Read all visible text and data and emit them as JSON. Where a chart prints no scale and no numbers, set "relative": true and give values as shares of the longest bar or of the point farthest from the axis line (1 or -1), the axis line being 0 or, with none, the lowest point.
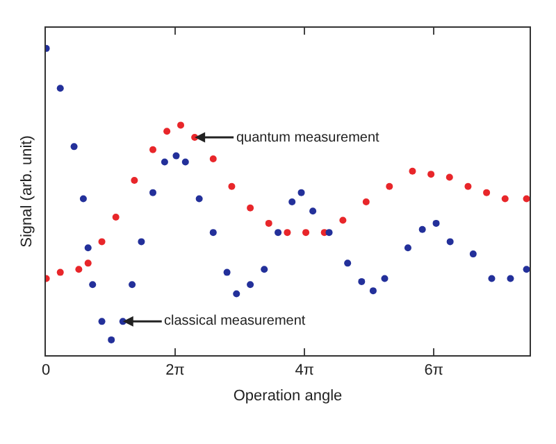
{
  "chart_data": {
    "type": "scatter",
    "relative": true,
    "xlabel": "Operation angle",
    "ylabel": "Signal (arb. unit)",
    "marker": "circle",
    "grid": false,
    "xlim": [
      0,
      23.5
    ],
    "xticks": [
      0,
      {
        "value": 6.283,
        "label": "2π"
      },
      {
        "value": 12.566,
        "label": "4π"
      },
      {
        "value": 18.85,
        "label": "6π"
      }
    ],
    "series": [
      {
        "color": "#e8262a",
        "x": [
          0.02,
          0.7,
          1.6,
          2.05,
          2.72,
          3.4,
          4.3,
          5.2,
          5.88,
          6.55,
          7.23,
          8.13,
          9.03,
          9.93,
          10.83,
          11.73,
          12.63,
          13.53,
          14.43,
          15.56,
          16.69,
          17.81,
          18.71,
          19.61,
          20.51,
          21.41,
          22.31,
          23.35
        ],
        "values": [
          0.25,
          0.27,
          0.28,
          0.3,
          0.37,
          0.45,
          0.57,
          0.67,
          0.73,
          0.75,
          0.71,
          0.64,
          0.55,
          0.48,
          0.43,
          0.4,
          0.4,
          0.4,
          0.44,
          0.5,
          0.55,
          0.6,
          0.59,
          0.58,
          0.55,
          0.53,
          0.51,
          0.51
        ]
      },
      {
        "color": "#23309a",
        "x": [
          0.02,
          0.7,
          1.37,
          1.82,
          2.05,
          2.27,
          2.72,
          3.18,
          3.74,
          4.19,
          4.64,
          5.2,
          5.77,
          6.33,
          6.78,
          7.45,
          8.13,
          8.8,
          9.26,
          9.93,
          10.61,
          11.28,
          11.96,
          12.41,
          12.97,
          13.76,
          14.66,
          15.34,
          15.9,
          16.46,
          17.59,
          18.29,
          18.96,
          19.64,
          20.76,
          21.66,
          22.57,
          23.35
        ],
        "values": [
          1.0,
          0.87,
          0.68,
          0.51,
          0.35,
          0.23,
          0.11,
          0.05,
          0.11,
          0.23,
          0.37,
          0.53,
          0.63,
          0.65,
          0.63,
          0.51,
          0.4,
          0.27,
          0.2,
          0.23,
          0.28,
          0.4,
          0.5,
          0.53,
          0.47,
          0.4,
          0.3,
          0.24,
          0.21,
          0.25,
          0.35,
          0.41,
          0.43,
          0.37,
          0.33,
          0.25,
          0.25,
          0.28
        ]
      }
    ],
    "annotations": [
      {
        "text": "quantum measurement",
        "x": 7.23,
        "y": 0.71
      },
      {
        "text": "classical measurement",
        "x": 3.74,
        "y": 0.11
      }
    ]
  }
}
